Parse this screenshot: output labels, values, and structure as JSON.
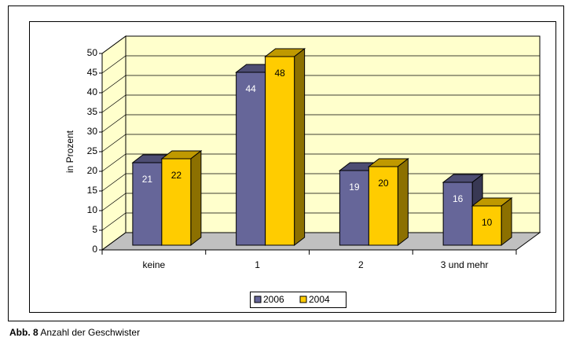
{
  "chart_data": {
    "type": "bar3d",
    "caption_label": "Abb. 8",
    "caption": "Anzahl der Geschwister",
    "y_label": "in Prozent",
    "categories": [
      "keine",
      "1",
      "2",
      "3 und mehr"
    ],
    "series": [
      {
        "name": "2006",
        "color": "#666699",
        "values": [
          21,
          44,
          19,
          16
        ]
      },
      {
        "name": "2004",
        "color": "#ffcc00",
        "values": [
          22,
          48,
          20,
          10
        ]
      }
    ],
    "ylim": [
      0,
      50
    ],
    "yticks": [
      0,
      5,
      10,
      15,
      20,
      25,
      30,
      35,
      40,
      45,
      50
    ],
    "grid": true,
    "legend": "bottom"
  }
}
